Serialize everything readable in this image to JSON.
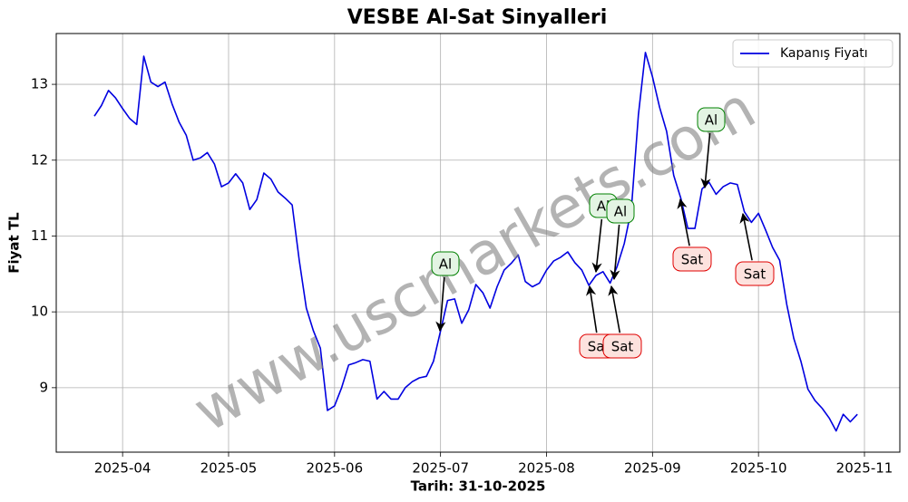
{
  "chart_data": {
    "type": "line",
    "title": "VESBE Al-Sat Sinyalleri",
    "xlabel": "Tarih: 31-10-2025",
    "ylabel": "Fiyat TL",
    "watermark": "www.uscmarkets.com",
    "categories": [
      null,
      null,
      null,
      null,
      "2025-04",
      null,
      null,
      null,
      null,
      null,
      null,
      null,
      null,
      null,
      null,
      null,
      null,
      null,
      null,
      "2025-05",
      null,
      null,
      null,
      null,
      null,
      null,
      null,
      null,
      null,
      null,
      null,
      null,
      null,
      null,
      "2025-06",
      null,
      null,
      null,
      null,
      null,
      null,
      null,
      null,
      null,
      null,
      null,
      null,
      null,
      null,
      "2025-07",
      null,
      null,
      null,
      null,
      null,
      null,
      null,
      null,
      null,
      null,
      null,
      null,
      null,
      null,
      "2025-08",
      null,
      null,
      null,
      null,
      null,
      null,
      null,
      null,
      null,
      null,
      null,
      null,
      null,
      null,
      "2025-09",
      null,
      null,
      null,
      null,
      null,
      null,
      null,
      null,
      null,
      null,
      null,
      null,
      null,
      null,
      "2025-10",
      null,
      null,
      null,
      null,
      null,
      null,
      null,
      null,
      null,
      null,
      null,
      null,
      null,
      null,
      "2025-11"
    ],
    "series": [
      {
        "name": "Kapanış Fiyatı",
        "color": "#0000e0",
        "values": [
          12.58,
          12.72,
          12.92,
          12.82,
          12.68,
          12.55,
          12.47,
          13.37,
          13.03,
          12.97,
          13.03,
          12.74,
          12.5,
          12.33,
          12.0,
          12.03,
          12.1,
          11.95,
          11.65,
          11.7,
          11.82,
          11.7,
          11.35,
          11.48,
          11.83,
          11.75,
          11.58,
          11.5,
          11.41,
          10.68,
          10.05,
          9.75,
          9.52,
          8.7,
          8.76,
          9.0,
          9.3,
          9.33,
          9.37,
          9.35,
          8.85,
          8.95,
          8.85,
          8.85,
          9.0,
          9.08,
          9.13,
          9.15,
          9.35,
          9.75,
          10.15,
          10.17,
          9.85,
          10.03,
          10.36,
          10.25,
          10.05,
          10.33,
          10.55,
          10.64,
          10.75,
          10.4,
          10.33,
          10.38,
          10.55,
          10.67,
          10.72,
          10.79,
          10.65,
          10.55,
          10.35,
          10.48,
          10.53,
          10.38,
          10.6,
          10.9,
          11.35,
          12.6,
          13.42,
          13.1,
          12.7,
          12.38,
          11.8,
          11.5,
          11.1,
          11.1,
          11.62,
          11.71,
          11.55,
          11.65,
          11.7,
          11.68,
          11.32,
          11.18,
          11.3,
          11.08,
          10.85,
          10.68,
          10.1,
          9.65,
          9.35,
          8.98,
          8.83,
          8.73,
          8.6,
          8.43,
          8.65,
          8.55,
          8.65,
          null
        ]
      }
    ],
    "ylim": [
      8.15,
      13.67
    ],
    "yticks": [
      9,
      10,
      11,
      12,
      13
    ],
    "grid": true,
    "legend": "upper right",
    "annotations": [
      {
        "text": "Al",
        "kind": "buy"
      },
      {
        "text": "Sat",
        "kind": "sell"
      },
      {
        "text": "Al",
        "kind": "buy"
      },
      {
        "text": "Al",
        "kind": "buy"
      },
      {
        "text": "Sat",
        "kind": "sell"
      },
      {
        "text": "Sat",
        "kind": "sell"
      },
      {
        "text": "Al",
        "kind": "buy"
      },
      {
        "text": "Sat",
        "kind": "sell"
      }
    ]
  }
}
